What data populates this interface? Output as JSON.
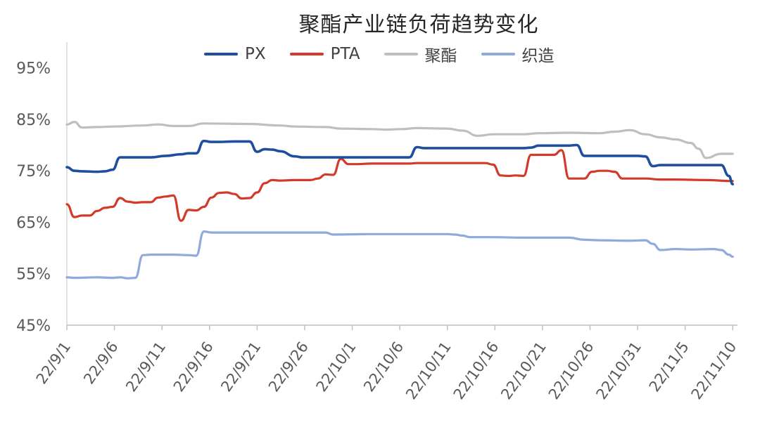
{
  "chart_data": {
    "type": "line",
    "title": "聚酯产业链负荷趋势变化",
    "xlabel": "",
    "ylabel": "",
    "ylim": [
      45,
      100
    ],
    "yticks": [
      "45%",
      "55%",
      "65%",
      "75%",
      "85%",
      "95%"
    ],
    "ytick_values": [
      45,
      55,
      65,
      75,
      85,
      95
    ],
    "xticks": [
      "22/9/1",
      "22/9/6",
      "22/9/11",
      "22/9/16",
      "22/9/21",
      "22/9/26",
      "22/10/1",
      "22/10/6",
      "22/10/11",
      "22/10/16",
      "22/10/21",
      "22/10/26",
      "22/10/31",
      "22/11/5",
      "22/11/10"
    ],
    "x_start": "2022-09-01",
    "x_count": 72,
    "grid": false,
    "legend_position": "top",
    "series": [
      {
        "name": "PX",
        "color": "#1f4e9c",
        "points": [
          [
            0,
            75.7
          ],
          [
            1,
            75
          ],
          [
            2,
            74.9
          ],
          [
            4,
            74.8
          ],
          [
            5,
            74.9
          ],
          [
            6,
            75.2
          ],
          [
            7,
            77.6
          ],
          [
            8,
            77.6
          ],
          [
            11,
            77.6
          ],
          [
            13,
            77.9
          ],
          [
            15,
            78.2
          ],
          [
            16,
            78.4
          ],
          [
            17,
            78.4
          ],
          [
            18,
            80.8
          ],
          [
            19,
            80.6
          ],
          [
            20,
            80.6
          ],
          [
            22,
            80.7
          ],
          [
            23,
            80.7
          ],
          [
            24,
            80.7
          ],
          [
            25,
            78.7
          ],
          [
            26,
            79.2
          ],
          [
            27,
            79.1
          ],
          [
            28,
            78.8
          ],
          [
            30,
            77.8
          ],
          [
            31,
            77.6
          ],
          [
            33,
            77.6
          ],
          [
            40,
            77.6
          ],
          [
            44,
            77.6
          ],
          [
            45,
            77.6
          ],
          [
            46,
            79.6
          ],
          [
            47,
            79.4
          ],
          [
            50,
            79.4
          ],
          [
            55,
            79.4
          ],
          [
            60,
            79.4
          ],
          [
            61,
            79.5
          ],
          [
            62,
            79.9
          ],
          [
            63,
            79.9
          ],
          [
            65,
            79.9
          ],
          [
            66,
            79.9
          ],
          [
            67,
            80
          ],
          [
            68,
            77.9
          ],
          [
            69,
            77.9
          ],
          [
            72,
            77.9
          ],
          [
            73,
            77.9
          ],
          [
            74,
            77.9
          ],
          [
            75,
            77.9
          ],
          [
            76,
            77.8
          ],
          [
            77,
            75.9
          ],
          [
            78,
            76.1
          ],
          [
            84,
            76.1
          ],
          [
            85,
            76.1
          ],
          [
            86,
            76.1
          ],
          [
            87,
            74
          ],
          [
            87.5,
            72.4
          ]
        ]
      },
      {
        "name": "PTA",
        "color": "#d43a2a",
        "points": [
          [
            0,
            68.5
          ],
          [
            1,
            66
          ],
          [
            2,
            66.3
          ],
          [
            3,
            66.3
          ],
          [
            4,
            67.2
          ],
          [
            5,
            67.8
          ],
          [
            6,
            68
          ],
          [
            7,
            69.7
          ],
          [
            8,
            69
          ],
          [
            9,
            68.8
          ],
          [
            10,
            68.9
          ],
          [
            11,
            68.9
          ],
          [
            12,
            69.8
          ],
          [
            13,
            70
          ],
          [
            14,
            70.2
          ],
          [
            15,
            65.3
          ],
          [
            16,
            67.4
          ],
          [
            17,
            67.3
          ],
          [
            18,
            68
          ],
          [
            19,
            69.8
          ],
          [
            20,
            70.7
          ],
          [
            21,
            70.8
          ],
          [
            22,
            70.5
          ],
          [
            23,
            69.6
          ],
          [
            24,
            69.7
          ],
          [
            25,
            70.8
          ],
          [
            26,
            72.6
          ],
          [
            27,
            73.2
          ],
          [
            28,
            73.1
          ],
          [
            30,
            73.2
          ],
          [
            32,
            73.2
          ],
          [
            33,
            73.5
          ],
          [
            34,
            74.3
          ],
          [
            35,
            74.2
          ],
          [
            36,
            77.3
          ],
          [
            37,
            76.3
          ],
          [
            38,
            76.3
          ],
          [
            40,
            76.4
          ],
          [
            45,
            76.4
          ],
          [
            46,
            76.5
          ],
          [
            50,
            76.5
          ],
          [
            55,
            76.5
          ],
          [
            56,
            76.2
          ],
          [
            57,
            74.1
          ],
          [
            58,
            74
          ],
          [
            59,
            74.1
          ],
          [
            60,
            74
          ],
          [
            61,
            78.1
          ],
          [
            62,
            78.1
          ],
          [
            64,
            78.1
          ],
          [
            65,
            79
          ],
          [
            66,
            73.5
          ],
          [
            67,
            73.5
          ],
          [
            68,
            73.5
          ],
          [
            69,
            74.8
          ],
          [
            70,
            75
          ],
          [
            71,
            75
          ],
          [
            72,
            74.8
          ],
          [
            73,
            73.5
          ],
          [
            74,
            73.5
          ],
          [
            76,
            73.5
          ],
          [
            78,
            73.3
          ],
          [
            80,
            73.3
          ],
          [
            84,
            73.2
          ],
          [
            87.5,
            73
          ]
        ]
      },
      {
        "name": "聚酯",
        "color": "#bfbfbf",
        "points": [
          [
            0,
            84
          ],
          [
            1,
            84.5
          ],
          [
            2,
            83.4
          ],
          [
            4,
            83.5
          ],
          [
            6,
            83.6
          ],
          [
            10,
            83.8
          ],
          [
            12,
            84
          ],
          [
            14,
            83.7
          ],
          [
            16,
            83.7
          ],
          [
            18,
            84.2
          ],
          [
            24,
            84.1
          ],
          [
            28,
            83.8
          ],
          [
            30,
            83.6
          ],
          [
            34,
            83.5
          ],
          [
            36,
            83.2
          ],
          [
            40,
            83.1
          ],
          [
            42,
            83
          ],
          [
            44,
            83.1
          ],
          [
            46,
            83.3
          ],
          [
            50,
            83.2
          ],
          [
            52,
            82.8
          ],
          [
            54,
            81.8
          ],
          [
            56,
            82.1
          ],
          [
            60,
            82.1
          ],
          [
            62,
            82.3
          ],
          [
            66,
            82.4
          ],
          [
            70,
            82.3
          ],
          [
            72,
            82.6
          ],
          [
            74,
            82.9
          ],
          [
            76,
            82.1
          ],
          [
            78,
            81.5
          ],
          [
            80,
            81.1
          ],
          [
            82,
            80.4
          ],
          [
            83,
            79.3
          ],
          [
            84,
            77.5
          ],
          [
            86,
            78.3
          ],
          [
            87.5,
            78.3
          ]
        ]
      },
      {
        "name": "织造",
        "color": "#8faadc",
        "points": [
          [
            0,
            54.3
          ],
          [
            1,
            54.2
          ],
          [
            4,
            54.3
          ],
          [
            6,
            54.2
          ],
          [
            7,
            54.3
          ],
          [
            8,
            54.1
          ],
          [
            9,
            54.2
          ],
          [
            10,
            58.6
          ],
          [
            11,
            58.7
          ],
          [
            14,
            58.7
          ],
          [
            16,
            58.6
          ],
          [
            17,
            58.5
          ],
          [
            18,
            63.2
          ],
          [
            19,
            63
          ],
          [
            24,
            63
          ],
          [
            28,
            63
          ],
          [
            32,
            63
          ],
          [
            34,
            63
          ],
          [
            35,
            62.6
          ],
          [
            40,
            62.7
          ],
          [
            45,
            62.7
          ],
          [
            50,
            62.7
          ],
          [
            51,
            62.6
          ],
          [
            52,
            62.4
          ],
          [
            53,
            62.1
          ],
          [
            56,
            62.1
          ],
          [
            60,
            62
          ],
          [
            64,
            62
          ],
          [
            66,
            62
          ],
          [
            68,
            61.6
          ],
          [
            70,
            61.5
          ],
          [
            74,
            61.4
          ],
          [
            76,
            61.5
          ],
          [
            77,
            60.8
          ],
          [
            78,
            59.6
          ],
          [
            80,
            59.8
          ],
          [
            82,
            59.7
          ],
          [
            85,
            59.8
          ],
          [
            86,
            59.6
          ],
          [
            87,
            58.7
          ],
          [
            87.5,
            58.3
          ]
        ]
      }
    ]
  }
}
